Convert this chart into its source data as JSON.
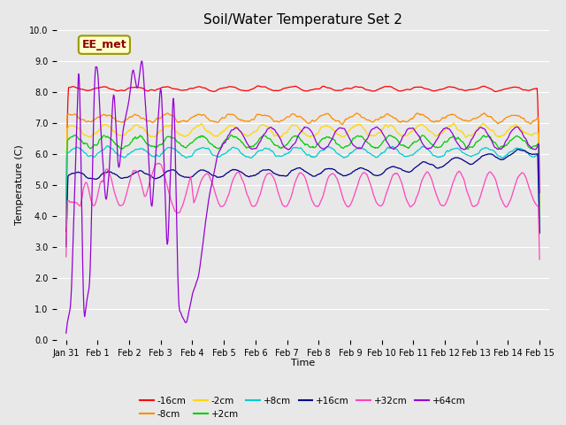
{
  "title": "Soil/Water Temperature Set 2",
  "xlabel": "Time",
  "ylabel": "Temperature (C)",
  "ylim": [
    0.0,
    10.0
  ],
  "yticks": [
    0.0,
    1.0,
    2.0,
    3.0,
    4.0,
    5.0,
    6.0,
    7.0,
    8.0,
    9.0,
    10.0
  ],
  "x_labels": [
    "Jan 31",
    "Feb 1",
    "Feb 2",
    "Feb 3",
    "Feb 4",
    "Feb 5",
    "Feb 6",
    "Feb 7",
    "Feb 8",
    "Feb 9",
    "Feb 10",
    "Feb 11",
    "Feb 12",
    "Feb 13",
    "Feb 14",
    "Feb 15"
  ],
  "annotation": "EE_met",
  "annotation_color": "#8B0000",
  "annotation_bg": "#FFFFCC",
  "annotation_border": "#999900",
  "background_color": "#E8E8E8",
  "series": [
    {
      "label": "-16cm",
      "color": "#FF0000"
    },
    {
      "label": "-8cm",
      "color": "#FF8C00"
    },
    {
      "label": "-2cm",
      "color": "#FFD700"
    },
    {
      "label": "+2cm",
      "color": "#00CC00"
    },
    {
      "label": "+8cm",
      "color": "#00CCCC"
    },
    {
      "label": "+16cm",
      "color": "#00008B"
    },
    {
      "label": "+32cm",
      "color": "#FF44BB"
    },
    {
      "label": "+64cm",
      "color": "#9400D3"
    }
  ],
  "legend_ncol": 6,
  "title_fontsize": 11,
  "axis_fontsize": 8,
  "tick_fontsize": 7
}
